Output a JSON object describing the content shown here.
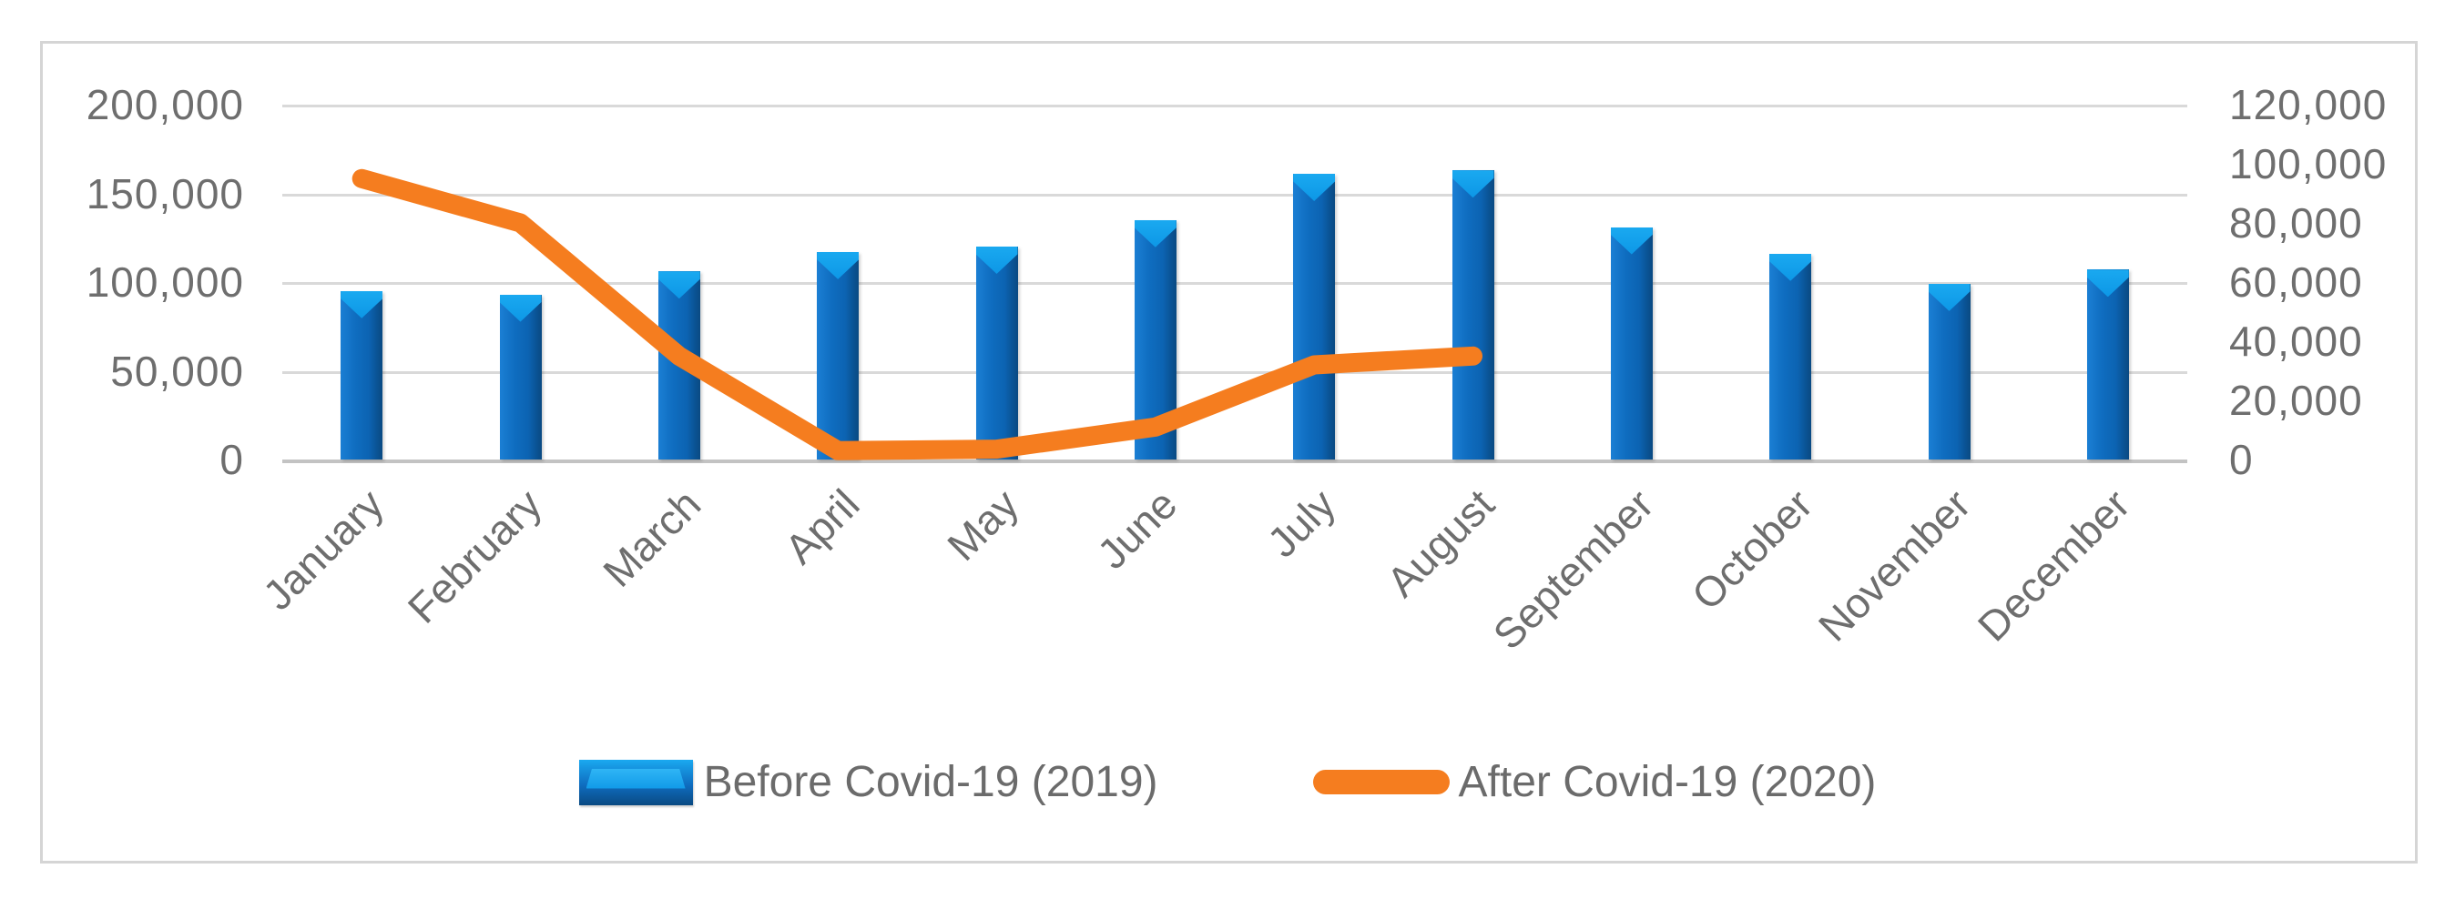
{
  "chart_data": {
    "type": "bar+line-combo",
    "title": "",
    "categories": [
      "January",
      "February",
      "March",
      "April",
      "May",
      "June",
      "July",
      "August",
      "September",
      "October",
      "November",
      "December"
    ],
    "series": [
      {
        "name": "Before Covid-19 (2019)",
        "type": "bar",
        "axis": "left",
        "color": "#0e6abf",
        "values": [
          95000,
          93000,
          106000,
          117000,
          120000,
          135000,
          161000,
          163000,
          131000,
          116000,
          99000,
          107000
        ]
      },
      {
        "name": "After Covid-19 (2020)",
        "type": "line",
        "axis": "right",
        "color": "#f57d1f",
        "values": [
          95000,
          80000,
          35000,
          3000,
          3500,
          11000,
          32000,
          35000,
          null,
          null,
          null,
          null
        ]
      }
    ],
    "left_axis": {
      "min": 0,
      "max": 200000,
      "tick_labels_top_to_bottom": [
        "200,000",
        "150,000",
        "100,000",
        "50,000",
        "0"
      ]
    },
    "right_axis": {
      "min": 0,
      "max": 120000,
      "tick_labels_top_to_bottom": [
        "120,000",
        "100,000",
        "80,000",
        "60,000",
        "40,000",
        "20,000",
        "0"
      ]
    },
    "legend_position": "bottom",
    "grid": true,
    "colors": {
      "bar_main": "#0e6abf",
      "bar_highlight": "#14a2ec",
      "line_orange": "#f57d1f",
      "axis_text": "#6e6e6e",
      "gridline": "#d9d9d9",
      "frame_border": "#d5d5d5"
    }
  }
}
